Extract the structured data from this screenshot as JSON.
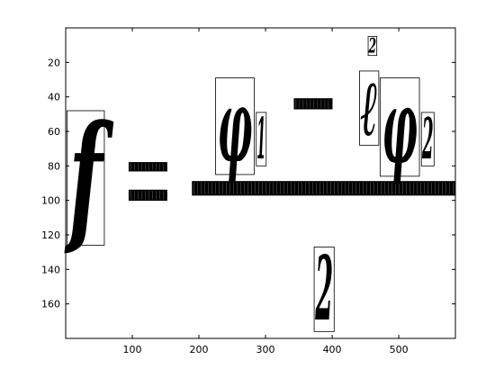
{
  "chart_data": {
    "type": "scatter",
    "title": "",
    "xlabel": "",
    "ylabel": "",
    "xlim": [
      0,
      585
    ],
    "ylim": [
      180,
      0
    ],
    "y_reversed": true,
    "grid": false,
    "xticks": [
      100,
      200,
      300,
      400,
      500
    ],
    "yticks": [
      20,
      40,
      60,
      80,
      100,
      120,
      140,
      160
    ],
    "xtick_labels": [
      "100",
      "200",
      "300",
      "400",
      "500"
    ],
    "ytick_labels": [
      "20",
      "40",
      "60",
      "80",
      "100",
      "120",
      "140",
      "160"
    ],
    "colors": {
      "ink": "#000000",
      "box": "#000000",
      "background": "#ffffff"
    },
    "boxes": [
      {
        "symbol": "f",
        "x0": 2,
        "x1": 58,
        "y0": 48,
        "y1": 126
      },
      {
        "symbol": "–",
        "x0": 95,
        "x1": 152,
        "y0": 78,
        "y1": 83
      },
      {
        "symbol": "–",
        "x0": 95,
        "x1": 152,
        "y0": 94,
        "y1": 100
      },
      {
        "symbol": "φ",
        "x0": 225,
        "x1": 283,
        "y0": 29,
        "y1": 85
      },
      {
        "symbol": "1",
        "x0": 286,
        "x1": 301,
        "y0": 49,
        "y1": 80
      },
      {
        "symbol": "–",
        "x0": 343,
        "x1": 400,
        "y0": 41,
        "y1": 47
      },
      {
        "symbol": "2",
        "x0": 373,
        "x1": 403,
        "y0": 127,
        "y1": 176
      },
      {
        "symbol": "2",
        "x0": 454,
        "x1": 467,
        "y0": 5,
        "y1": 16
      },
      {
        "symbol": "–",
        "x0": 190,
        "x1": 585,
        "y0": 89,
        "y1": 97
      },
      {
        "symbol": "ℓ",
        "x0": 441,
        "x1": 470,
        "y0": 25,
        "y1": 68
      },
      {
        "symbol": "φ",
        "x0": 472,
        "x1": 531,
        "y0": 29,
        "y1": 86
      },
      {
        "symbol": "2",
        "x0": 534,
        "x1": 553,
        "y0": 49,
        "y1": 80
      }
    ]
  }
}
